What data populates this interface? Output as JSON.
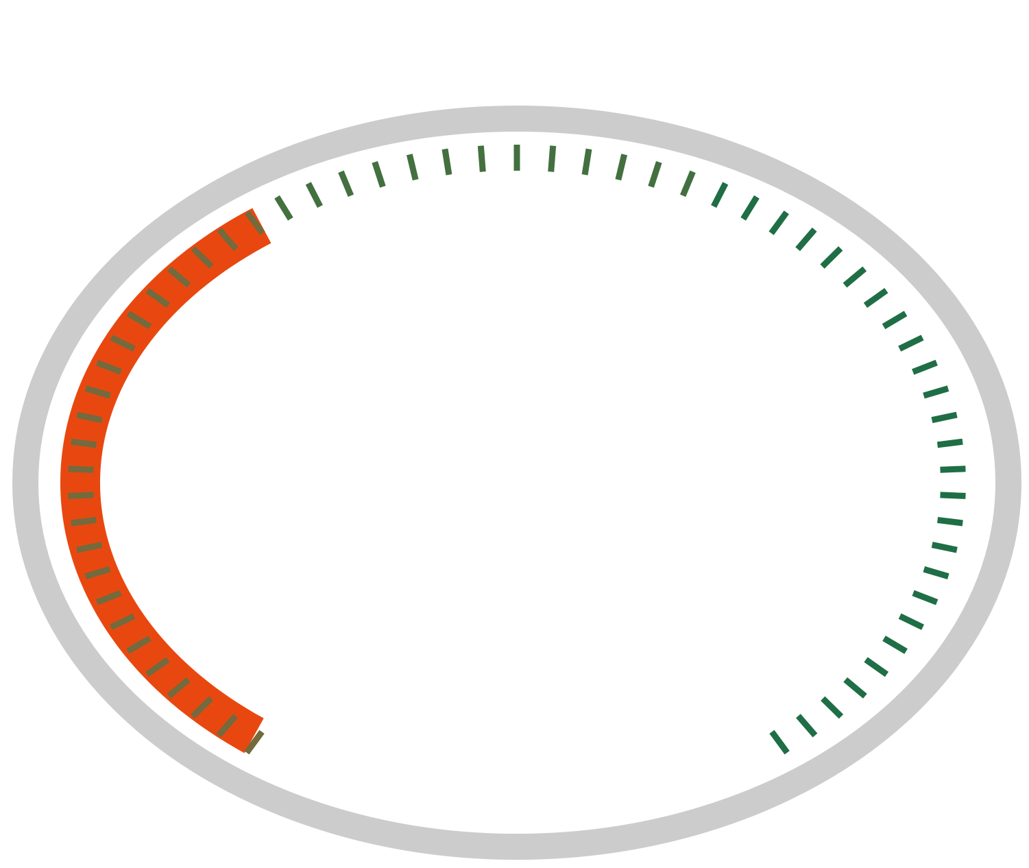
{
  "gauge": {
    "value_fraction": 0.375,
    "tick_count": 63,
    "colors": {
      "background": "#ffffff",
      "outer_ring": "#cccccc",
      "progress_arc": "#e84810",
      "tick_on_progress": "#736a3e",
      "tick_default": "#1f6e45",
      "tick_transition": "#43703f"
    },
    "icon": "circular-gauge"
  }
}
